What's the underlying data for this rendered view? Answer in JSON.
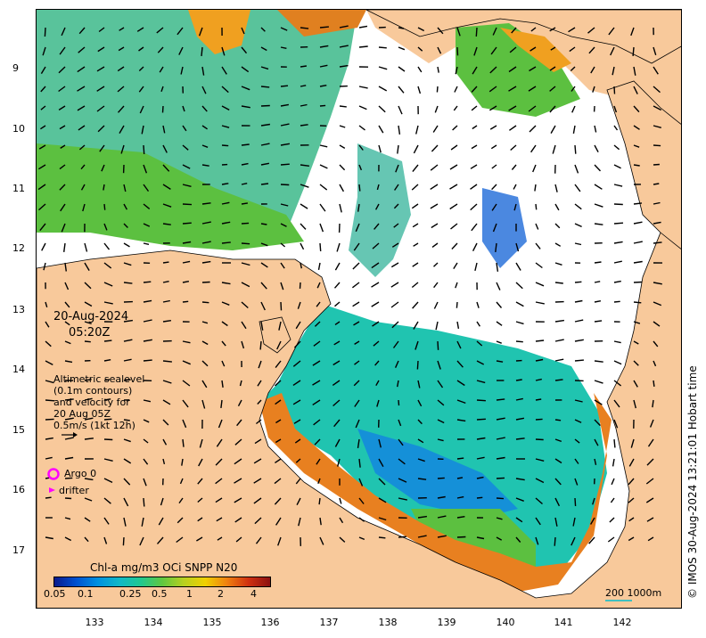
{
  "map": {
    "y_tick_labels": [
      "9",
      "10",
      "11",
      "12",
      "13",
      "14",
      "15",
      "16",
      "17"
    ],
    "x_tick_labels": [
      "133",
      "134",
      "135",
      "136",
      "137",
      "138",
      "139",
      "140",
      "141",
      "142"
    ]
  },
  "annotations": {
    "date": "20-Aug-2024",
    "time": "05:20Z",
    "altimetry_lines": [
      "Altimetric sealevel",
      "(0.1m contours)",
      "and velocity for",
      "20 Aug 05Z",
      "0.5m/s (1kt 12h)"
    ],
    "argo_label": "Argo 0",
    "drifter_label": "drifter",
    "scale_label": "200  1000m",
    "credit": "© IMOS 30-Aug-2024 13:21:01 Hobart time"
  },
  "colorbar": {
    "title": "Chl-a mg/m3 OCi SNPP N20",
    "tick_labels": [
      "0.05",
      "0.1",
      "0.25",
      "0.5",
      "1",
      "2",
      "4"
    ],
    "colors": [
      "#0a1a8c",
      "#0050d0",
      "#0090e0",
      "#10b8c8",
      "#20c890",
      "#60c840",
      "#b8d020",
      "#f0d000",
      "#f08010",
      "#d03010",
      "#8c1010"
    ]
  },
  "colors": {
    "land": "#f8c99b",
    "argo_marker": "#ff00ff",
    "drifter_marker": "#ff00ff",
    "scale_bar": "#40c0c0"
  }
}
